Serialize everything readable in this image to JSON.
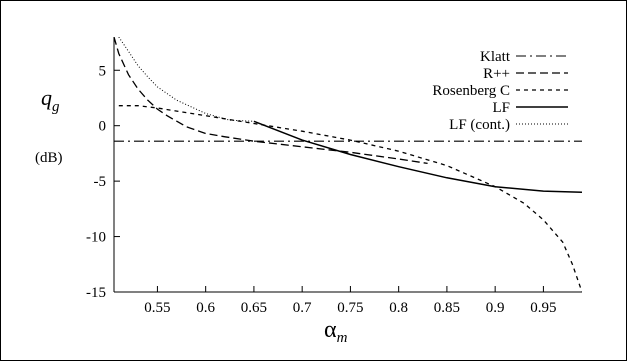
{
  "chart_data": {
    "type": "line",
    "ylabel": "q",
    "ylabel_sub": "g",
    "yunit": "(dB)",
    "xlabel": "α",
    "xlabel_sub": "m",
    "xlim": [
      0.505,
      0.99
    ],
    "ylim": [
      -15,
      8
    ],
    "xticks": [
      0.55,
      0.6,
      0.65,
      0.7,
      0.75,
      0.8,
      0.85,
      0.9,
      0.95
    ],
    "xtick_labels": [
      "0.55",
      "0.6",
      "0.65",
      "0.7",
      "0.75",
      "0.8",
      "0.85",
      "0.9",
      "0.95"
    ],
    "yticks": [
      5,
      0,
      -5,
      -10,
      -15
    ],
    "ytick_labels": [
      "5",
      "0",
      "-5",
      "-10",
      "-15"
    ],
    "grid": false,
    "legend_position": "top-right",
    "series": [
      {
        "name": "Klatt",
        "dash": "dashdot",
        "x": [
          0.505,
          0.99
        ],
        "y": [
          -1.4,
          -1.4
        ]
      },
      {
        "name": "R++",
        "dash": "dashed",
        "x": [
          0.505,
          0.51,
          0.52,
          0.53,
          0.54,
          0.55,
          0.56,
          0.58,
          0.6,
          0.62,
          0.65,
          0.7,
          0.75,
          0.8,
          0.83
        ],
        "y": [
          8.0,
          6.5,
          4.6,
          3.3,
          2.3,
          1.5,
          0.9,
          -0.1,
          -0.7,
          -1.0,
          -1.4,
          -1.9,
          -2.4,
          -3.0,
          -3.4
        ]
      },
      {
        "name": "Rosenberg C",
        "dash": "dotted-dash",
        "x": [
          0.51,
          0.53,
          0.55,
          0.6,
          0.65,
          0.7,
          0.75,
          0.8,
          0.85,
          0.9,
          0.93,
          0.95,
          0.97,
          0.98,
          0.99
        ],
        "y": [
          1.8,
          1.8,
          1.6,
          0.9,
          0.2,
          -0.5,
          -1.3,
          -2.3,
          -3.6,
          -5.5,
          -7.0,
          -8.5,
          -10.5,
          -12.5,
          -15.0
        ]
      },
      {
        "name": "LF",
        "dash": "solid",
        "x": [
          0.65,
          0.7,
          0.75,
          0.8,
          0.85,
          0.9,
          0.95,
          0.99
        ],
        "y": [
          0.4,
          -1.3,
          -2.6,
          -3.7,
          -4.7,
          -5.5,
          -5.9,
          -6.0
        ]
      },
      {
        "name": "LF (cont.)",
        "dash": "finedot",
        "x": [
          0.51,
          0.52,
          0.53,
          0.54,
          0.55,
          0.57,
          0.6,
          0.625,
          0.65
        ],
        "y": [
          8.0,
          6.7,
          5.4,
          4.4,
          3.5,
          2.3,
          1.1,
          0.5,
          0.4
        ]
      }
    ]
  }
}
